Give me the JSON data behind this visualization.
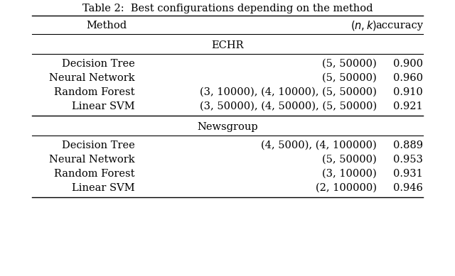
{
  "title": "Table 2:  Best configurations depending on the method",
  "sections": [
    {
      "section_name": "ECHR",
      "rows": [
        [
          "Decision Tree",
          "(5, 50000)",
          "0.900"
        ],
        [
          "Neural Network",
          "(5, 50000)",
          "0.960"
        ],
        [
          "Random Forest",
          "(3, 10000), (4, 10000), (5, 50000)",
          "0.910"
        ],
        [
          "Linear SVM",
          "(3, 50000), (4, 50000), (5, 50000)",
          "0.921"
        ]
      ]
    },
    {
      "section_name": "Newsgroup",
      "rows": [
        [
          "Decision Tree",
          "(4, 5000), (4, 100000)",
          "0.889"
        ],
        [
          "Neural Network",
          "(5, 50000)",
          "0.953"
        ],
        [
          "Random Forest",
          "(3, 10000)",
          "0.931"
        ],
        [
          "Linear SVM",
          "(2, 100000)",
          "0.946"
        ]
      ]
    }
  ],
  "bg_color": "#ffffff",
  "text_color": "#000000",
  "font_size": 10.5,
  "title_font_size": 10.5
}
